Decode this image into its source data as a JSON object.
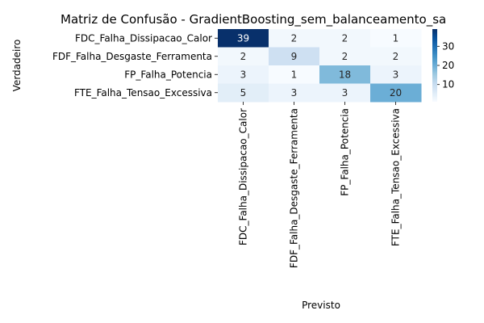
{
  "chart_data": {
    "type": "heatmap",
    "title": "Matriz de Confusão - GradientBoosting_sem_balanceamento_sa",
    "xlabel": "Previsto",
    "ylabel": "Verdadeiro",
    "x_categories": [
      "FDC_Falha_Dissipacao_Calor",
      "FDF_Falha_Desgaste_Ferramenta",
      "FP_Falha_Potencia",
      "FTE_Falha_Tensao_Excessiva"
    ],
    "y_categories": [
      "FDC_Falha_Dissipacao_Calor",
      "FDF_Falha_Desgaste_Ferramenta",
      "FP_Falha_Potencia",
      "FTE_Falha_Tensao_Excessiva"
    ],
    "values": [
      [
        39,
        2,
        2,
        1
      ],
      [
        2,
        9,
        2,
        2
      ],
      [
        3,
        1,
        18,
        3
      ],
      [
        5,
        3,
        3,
        20
      ]
    ],
    "colormap": "Blues",
    "colorbar": {
      "min": 1,
      "max": 39,
      "ticks": [
        10,
        20,
        30
      ]
    },
    "annotations": true
  }
}
